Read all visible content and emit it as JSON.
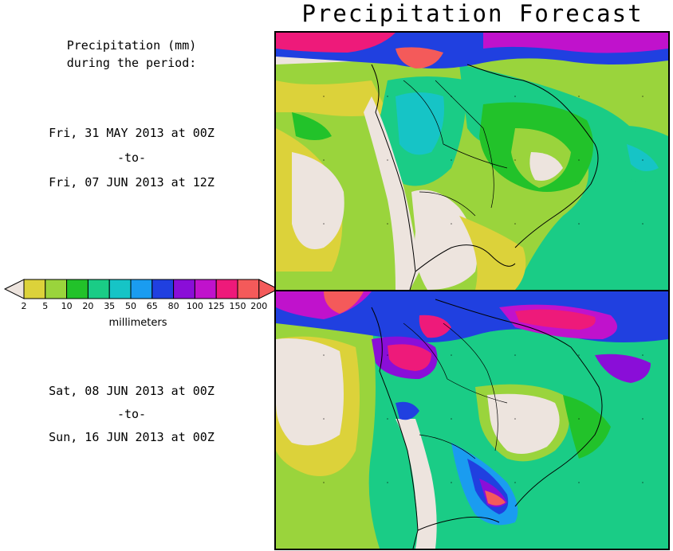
{
  "title": "Precipitation Forecast",
  "intro": {
    "line1": "Precipitation (mm)",
    "line2": "during the period:"
  },
  "period1": {
    "start": "Fri, 31 MAY 2013 at 00Z",
    "sep": "-to-",
    "end": "Fri, 07 JUN 2013 at 12Z"
  },
  "period2": {
    "start": "Sat, 08 JUN 2013 at 00Z",
    "sep": "-to-",
    "end": "Sun, 16 JUN 2013 at 00Z"
  },
  "colorbar": {
    "units": "millimeters",
    "ticks": [
      "2",
      "5",
      "10",
      "20",
      "35",
      "50",
      "65",
      "80",
      "100",
      "125",
      "150",
      "200"
    ],
    "colors": [
      "#dcd23a",
      "#9ad43c",
      "#22c22a",
      "#1acc86",
      "#16c4c6",
      "#1a9cf0",
      "#2040e0",
      "#8a0ed8",
      "#c012cc",
      "#ee1a7a",
      "#f45a5a"
    ],
    "below_color": "#ede4de",
    "above_color": "#f45a5a"
  }
}
